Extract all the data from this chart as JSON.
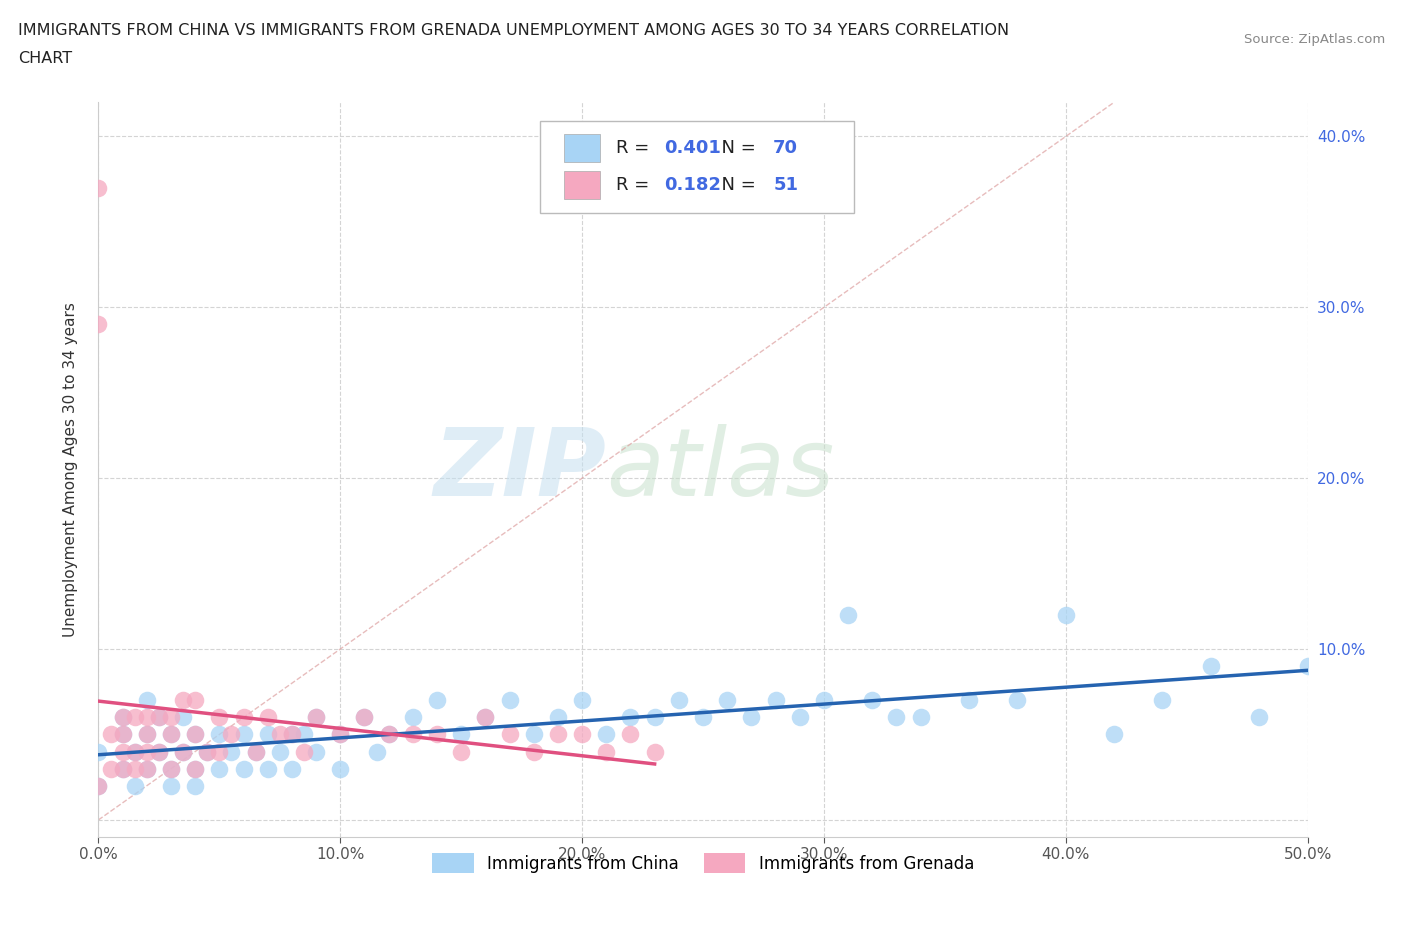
{
  "title_line1": "IMMIGRANTS FROM CHINA VS IMMIGRANTS FROM GRENADA UNEMPLOYMENT AMONG AGES 30 TO 34 YEARS CORRELATION",
  "title_line2": "CHART",
  "source": "Source: ZipAtlas.com",
  "ylabel": "Unemployment Among Ages 30 to 34 years",
  "xlim": [
    0.0,
    0.5
  ],
  "ylim": [
    -0.01,
    0.42
  ],
  "xticks": [
    0.0,
    0.1,
    0.2,
    0.3,
    0.4,
    0.5
  ],
  "xticklabels": [
    "0.0%",
    "10.0%",
    "20.0%",
    "30.0%",
    "40.0%",
    "50.0%"
  ],
  "yticks": [
    0.0,
    0.1,
    0.2,
    0.3,
    0.4
  ],
  "yticklabels": [
    "",
    "10.0%",
    "20.0%",
    "30.0%",
    "40.0%"
  ],
  "china_color": "#a8d4f5",
  "grenada_color": "#f5a8c0",
  "china_line_color": "#2563b0",
  "grenada_line_color": "#e05080",
  "legend_china_color": "#a8d4f5",
  "legend_grenada_color": "#f5a8c0",
  "R_china": 0.401,
  "N_china": 70,
  "R_grenada": 0.182,
  "N_grenada": 51,
  "R_N_color": "#4169E1",
  "china_x": [
    0.0,
    0.0,
    0.01,
    0.01,
    0.01,
    0.015,
    0.015,
    0.02,
    0.02,
    0.02,
    0.025,
    0.025,
    0.03,
    0.03,
    0.03,
    0.035,
    0.035,
    0.04,
    0.04,
    0.04,
    0.045,
    0.05,
    0.05,
    0.055,
    0.06,
    0.06,
    0.065,
    0.07,
    0.07,
    0.075,
    0.08,
    0.08,
    0.085,
    0.09,
    0.09,
    0.1,
    0.1,
    0.11,
    0.115,
    0.12,
    0.13,
    0.14,
    0.15,
    0.16,
    0.17,
    0.18,
    0.19,
    0.2,
    0.21,
    0.22,
    0.23,
    0.24,
    0.25,
    0.26,
    0.27,
    0.28,
    0.29,
    0.3,
    0.31,
    0.32,
    0.33,
    0.34,
    0.36,
    0.38,
    0.4,
    0.42,
    0.44,
    0.46,
    0.48,
    0.5
  ],
  "china_y": [
    0.04,
    0.02,
    0.05,
    0.03,
    0.06,
    0.04,
    0.02,
    0.05,
    0.03,
    0.07,
    0.04,
    0.06,
    0.03,
    0.05,
    0.02,
    0.04,
    0.06,
    0.03,
    0.05,
    0.02,
    0.04,
    0.05,
    0.03,
    0.04,
    0.05,
    0.03,
    0.04,
    0.05,
    0.03,
    0.04,
    0.05,
    0.03,
    0.05,
    0.04,
    0.06,
    0.05,
    0.03,
    0.06,
    0.04,
    0.05,
    0.06,
    0.07,
    0.05,
    0.06,
    0.07,
    0.05,
    0.06,
    0.07,
    0.05,
    0.06,
    0.06,
    0.07,
    0.06,
    0.07,
    0.06,
    0.07,
    0.06,
    0.07,
    0.12,
    0.07,
    0.06,
    0.06,
    0.07,
    0.07,
    0.12,
    0.05,
    0.07,
    0.09,
    0.06,
    0.09
  ],
  "grenada_x": [
    0.0,
    0.0,
    0.0,
    0.005,
    0.005,
    0.01,
    0.01,
    0.01,
    0.01,
    0.015,
    0.015,
    0.015,
    0.02,
    0.02,
    0.02,
    0.02,
    0.025,
    0.025,
    0.03,
    0.03,
    0.03,
    0.035,
    0.035,
    0.04,
    0.04,
    0.04,
    0.045,
    0.05,
    0.05,
    0.055,
    0.06,
    0.065,
    0.07,
    0.075,
    0.08,
    0.085,
    0.09,
    0.1,
    0.11,
    0.12,
    0.13,
    0.14,
    0.15,
    0.16,
    0.17,
    0.18,
    0.19,
    0.2,
    0.21,
    0.22,
    0.23
  ],
  "grenada_y": [
    0.37,
    0.29,
    0.02,
    0.05,
    0.03,
    0.03,
    0.05,
    0.04,
    0.06,
    0.04,
    0.06,
    0.03,
    0.05,
    0.04,
    0.06,
    0.03,
    0.06,
    0.04,
    0.05,
    0.03,
    0.06,
    0.04,
    0.07,
    0.05,
    0.03,
    0.07,
    0.04,
    0.06,
    0.04,
    0.05,
    0.06,
    0.04,
    0.06,
    0.05,
    0.05,
    0.04,
    0.06,
    0.05,
    0.06,
    0.05,
    0.05,
    0.05,
    0.04,
    0.06,
    0.05,
    0.04,
    0.05,
    0.05,
    0.04,
    0.05,
    0.04
  ],
  "watermark_zip": "ZIP",
  "watermark_atlas": "atlas",
  "background_color": "#ffffff",
  "grid_color": "#d0d0d0"
}
